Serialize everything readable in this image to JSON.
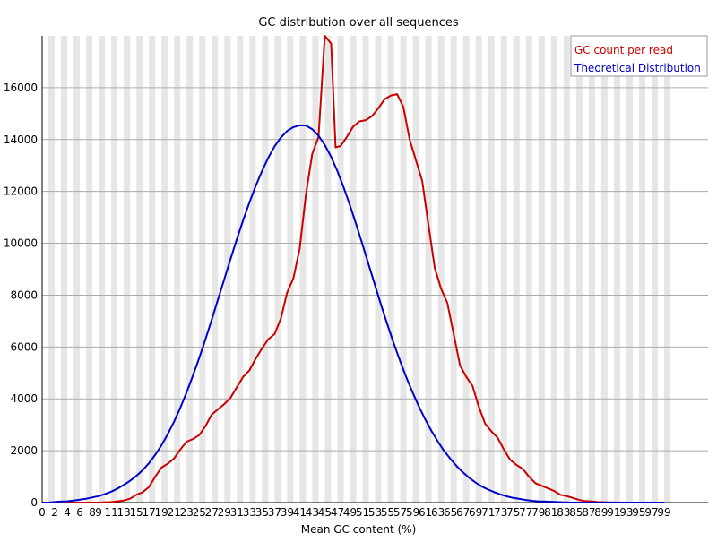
{
  "chart_data": {
    "type": "line",
    "title": "GC distribution over all sequences",
    "xlabel": "Mean GC content (%)",
    "ylabel": "",
    "xlim": [
      0,
      100
    ],
    "ylim": [
      0,
      18000
    ],
    "x_ticks": [
      0,
      2,
      4,
      6,
      8,
      9,
      11,
      13,
      15,
      17,
      19,
      21,
      23,
      25,
      27,
      29,
      31,
      33,
      35,
      37,
      39,
      41,
      43,
      45,
      47,
      49,
      51,
      53,
      55,
      57,
      59,
      61,
      63,
      65,
      67,
      69,
      71,
      73,
      75,
      77,
      79,
      81,
      83,
      85,
      87,
      89,
      91,
      93,
      95,
      97,
      99
    ],
    "x_tick_labels": [
      "0",
      "2",
      "4",
      "6",
      "8",
      "9",
      "11",
      "13",
      "15",
      "17",
      "19",
      "21",
      "23",
      "25",
      "27",
      "29",
      "31",
      "33",
      "35",
      "37",
      "39",
      "41",
      "43",
      "45",
      "47",
      "49",
      "51",
      "53",
      "55",
      "57",
      "59",
      "61",
      "63",
      "65",
      "67",
      "69",
      "71",
      "73",
      "75",
      "77",
      "79",
      "81",
      "83",
      "85",
      "87",
      "89",
      "91",
      "93",
      "95",
      "97",
      "99"
    ],
    "y_ticks": [
      0,
      2000,
      4000,
      6000,
      8000,
      10000,
      12000,
      14000,
      16000
    ],
    "y_tick_labels": [
      "0",
      "2000",
      "4000",
      "6000",
      "8000",
      "10000",
      "12000",
      "14000",
      "16000"
    ],
    "grid": true,
    "legend_position": "top-right",
    "series": [
      {
        "name": "GC count per read",
        "color": "#cc0000",
        "points": [
          [
            0,
            0
          ],
          [
            2,
            0
          ],
          [
            4,
            0
          ],
          [
            6,
            0
          ],
          [
            8,
            0
          ],
          [
            9,
            0
          ],
          [
            11,
            20
          ],
          [
            12,
            50
          ],
          [
            13,
            80
          ],
          [
            14,
            150
          ],
          [
            15,
            300
          ],
          [
            16,
            400
          ],
          [
            17,
            600
          ],
          [
            18,
            1000
          ],
          [
            19,
            1350
          ],
          [
            20,
            1500
          ],
          [
            21,
            1700
          ],
          [
            22,
            2050
          ],
          [
            23,
            2350
          ],
          [
            24,
            2450
          ],
          [
            25,
            2600
          ],
          [
            26,
            2950
          ],
          [
            27,
            3400
          ],
          [
            28,
            3600
          ],
          [
            29,
            3800
          ],
          [
            30,
            4050
          ],
          [
            31,
            4450
          ],
          [
            32,
            4850
          ],
          [
            33,
            5100
          ],
          [
            34,
            5550
          ],
          [
            35,
            5950
          ],
          [
            36,
            6300
          ],
          [
            37,
            6500
          ],
          [
            38,
            7100
          ],
          [
            39,
            8100
          ],
          [
            40,
            8650
          ],
          [
            41,
            9800
          ],
          [
            42,
            11900
          ],
          [
            43,
            13450
          ],
          [
            44,
            14100
          ],
          [
            45,
            18000
          ],
          [
            46,
            17700
          ],
          [
            46.7,
            13700
          ],
          [
            47.5,
            13750
          ],
          [
            48.5,
            14100
          ],
          [
            49.5,
            14500
          ],
          [
            50.5,
            14700
          ],
          [
            51.5,
            14750
          ],
          [
            52.5,
            14900
          ],
          [
            53.5,
            15200
          ],
          [
            54.5,
            15550
          ],
          [
            55.5,
            15700
          ],
          [
            56.5,
            15750
          ],
          [
            57.5,
            15250
          ],
          [
            58.5,
            14000
          ],
          [
            59.5,
            13200
          ],
          [
            60.5,
            12400
          ],
          [
            61.5,
            10700
          ],
          [
            62.5,
            9050
          ],
          [
            63.5,
            8250
          ],
          [
            64.5,
            7700
          ],
          [
            65.5,
            6500
          ],
          [
            66.5,
            5300
          ],
          [
            67.5,
            4850
          ],
          [
            68.5,
            4500
          ],
          [
            69.5,
            3700
          ],
          [
            70.5,
            3050
          ],
          [
            71.5,
            2750
          ],
          [
            72.5,
            2500
          ],
          [
            73.5,
            2050
          ],
          [
            74.5,
            1650
          ],
          [
            75.5,
            1450
          ],
          [
            76.5,
            1300
          ],
          [
            77.5,
            1000
          ],
          [
            78.5,
            750
          ],
          [
            79.5,
            650
          ],
          [
            80.5,
            550
          ],
          [
            81.5,
            450
          ],
          [
            82.5,
            300
          ],
          [
            83.5,
            250
          ],
          [
            84.5,
            180
          ],
          [
            85.5,
            100
          ],
          [
            86.5,
            60
          ],
          [
            87.5,
            40
          ],
          [
            88.5,
            20
          ],
          [
            90,
            10
          ],
          [
            92,
            0
          ],
          [
            95,
            0
          ],
          [
            99,
            0
          ]
        ]
      },
      {
        "name": "Theoretical Distribution",
        "color": "#0000cc",
        "points": [
          [
            0,
            0
          ],
          [
            1,
            0
          ],
          [
            2,
            20
          ],
          [
            3,
            40
          ],
          [
            4,
            50
          ],
          [
            5,
            80
          ],
          [
            6,
            110
          ],
          [
            7,
            150
          ],
          [
            8,
            200
          ],
          [
            9,
            250
          ],
          [
            10,
            330
          ],
          [
            11,
            420
          ],
          [
            12,
            540
          ],
          [
            13,
            680
          ],
          [
            14,
            840
          ],
          [
            15,
            1030
          ],
          [
            16,
            1250
          ],
          [
            17,
            1520
          ],
          [
            18,
            1840
          ],
          [
            19,
            2210
          ],
          [
            20,
            2640
          ],
          [
            21,
            3120
          ],
          [
            22,
            3660
          ],
          [
            23,
            4250
          ],
          [
            24,
            4890
          ],
          [
            25,
            5580
          ],
          [
            26,
            6300
          ],
          [
            27,
            7060
          ],
          [
            28,
            7840
          ],
          [
            29,
            8620
          ],
          [
            30,
            9400
          ],
          [
            31,
            10160
          ],
          [
            32,
            10890
          ],
          [
            33,
            11570
          ],
          [
            34,
            12210
          ],
          [
            35,
            12790
          ],
          [
            36,
            13300
          ],
          [
            37,
            13740
          ],
          [
            38,
            14080
          ],
          [
            39,
            14330
          ],
          [
            40,
            14480
          ],
          [
            41,
            14550
          ],
          [
            42,
            14540
          ],
          [
            43,
            14400
          ],
          [
            44,
            14150
          ],
          [
            45,
            13790
          ],
          [
            46,
            13330
          ],
          [
            47,
            12780
          ],
          [
            48,
            12150
          ],
          [
            49,
            11460
          ],
          [
            50,
            10720
          ],
          [
            51,
            9950
          ],
          [
            52,
            9160
          ],
          [
            53,
            8370
          ],
          [
            54,
            7590
          ],
          [
            55,
            6830
          ],
          [
            56,
            6110
          ],
          [
            57,
            5440
          ],
          [
            58,
            4810
          ],
          [
            59,
            4230
          ],
          [
            60,
            3690
          ],
          [
            61,
            3200
          ],
          [
            62,
            2750
          ],
          [
            63,
            2350
          ],
          [
            64,
            1990
          ],
          [
            65,
            1680
          ],
          [
            66,
            1400
          ],
          [
            67,
            1160
          ],
          [
            68,
            950
          ],
          [
            69,
            770
          ],
          [
            70,
            620
          ],
          [
            71,
            500
          ],
          [
            72,
            400
          ],
          [
            73,
            310
          ],
          [
            74,
            240
          ],
          [
            75,
            180
          ],
          [
            76,
            140
          ],
          [
            77,
            100
          ],
          [
            78,
            70
          ],
          [
            79,
            50
          ],
          [
            80,
            40
          ],
          [
            81,
            30
          ],
          [
            82,
            20
          ],
          [
            83,
            10
          ],
          [
            85,
            0
          ],
          [
            90,
            0
          ],
          [
            95,
            0
          ],
          [
            99,
            0
          ]
        ]
      }
    ]
  }
}
